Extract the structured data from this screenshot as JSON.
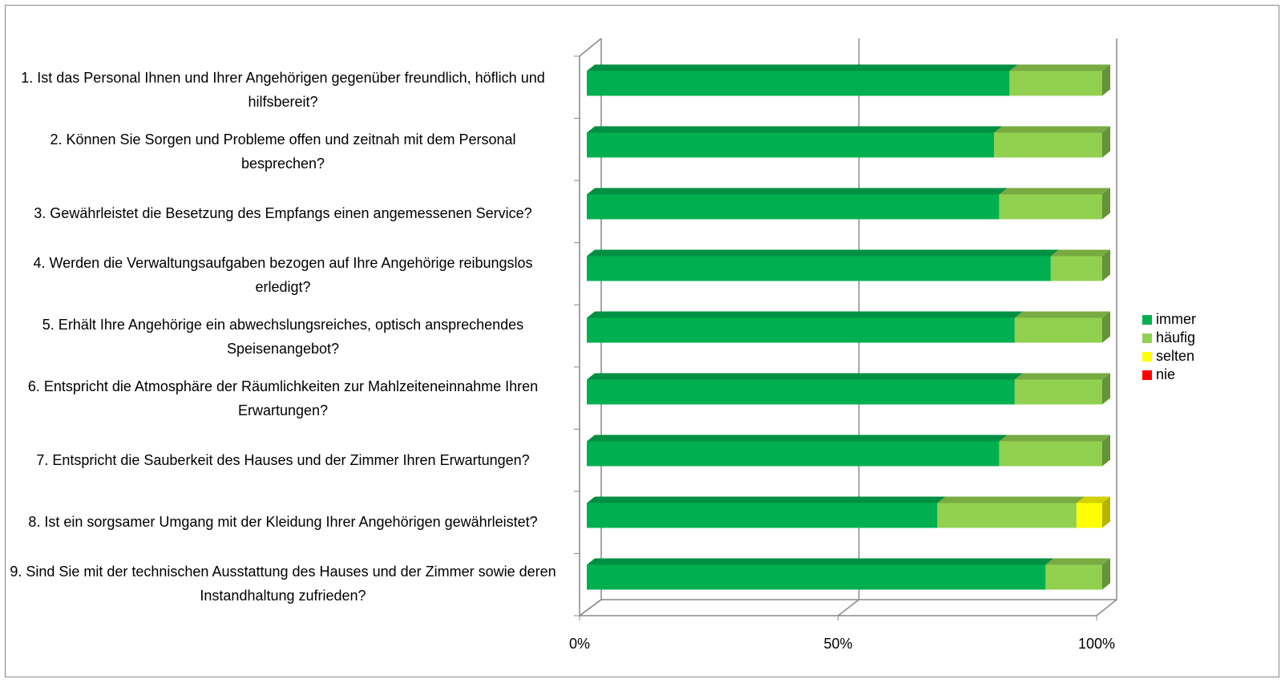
{
  "chart_data": {
    "type": "bar3d_stacked_horizontal",
    "categories": [
      "1. Ist das Personal Ihnen und Ihrer Angehörigen gegenüber freundlich, höflich und hilfsbereit?",
      "2. Können Sie Sorgen und Probleme offen und zeitnah mit dem Personal besprechen?",
      "3. Gewährleistet die Besetzung des Empfangs einen angemessenen Service?",
      "4. Werden die Verwaltungsaufgaben bezogen auf Ihre Angehörige reibungslos erledigt?",
      "5. Erhält Ihre Angehörige ein abwechslungsreiches, optisch ansprechendes Speisenangebot?",
      "6. Entspricht die Atmosphäre der Räumlichkeiten zur Mahlzeiteneinnahme Ihren Erwartungen?",
      "7. Entspricht die Sauberkeit des Hauses und der Zimmer Ihren Erwartungen?",
      "8. Ist ein sorgsamer Umgang mit der Kleidung Ihrer Angehörigen gewährleistet?",
      "9. Sind Sie mit der technischen Ausstattung des Hauses und der Zimmer sowie deren Instandhaltung zufrieden?"
    ],
    "series": [
      {
        "name": "immer",
        "color": "#00b050",
        "values": [
          82,
          79,
          80,
          90,
          83,
          83,
          80,
          68,
          89
        ]
      },
      {
        "name": "häufig",
        "color": "#92d050",
        "values": [
          18,
          21,
          20,
          10,
          17,
          17,
          20,
          27,
          11
        ]
      },
      {
        "name": "selten",
        "color": "#ffff00",
        "values": [
          0,
          0,
          0,
          0,
          0,
          0,
          0,
          5,
          0
        ]
      },
      {
        "name": "nie",
        "color": "#ff0000",
        "values": [
          0,
          0,
          0,
          0,
          0,
          0,
          0,
          0,
          0
        ]
      }
    ],
    "xlim": [
      0,
      100
    ],
    "xticks": [
      {
        "value": 0,
        "label": "0%"
      },
      {
        "value": 50,
        "label": "50%"
      },
      {
        "value": 100,
        "label": "100%"
      }
    ],
    "grid": true,
    "legend": "right"
  }
}
